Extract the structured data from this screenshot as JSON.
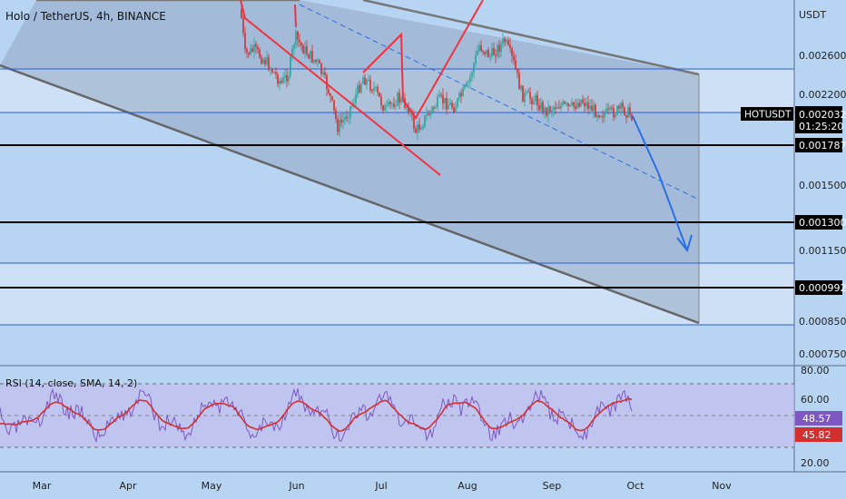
{
  "header": {
    "title": "Holo / TetherUS, 4h, BINANCE"
  },
  "axis": {
    "currency": "USDT",
    "price_ticks": [
      "0.002600",
      "0.002200",
      "0.001500",
      "0.001150",
      "0.000850",
      "0.000750"
    ],
    "time_ticks": [
      "Mar",
      "Apr",
      "May",
      "Jun",
      "Jul",
      "Aug",
      "Sep",
      "Oct",
      "Nov"
    ]
  },
  "levels": [
    {
      "label": "0.001787",
      "style": "black"
    },
    {
      "label": "0.001300",
      "style": "black"
    },
    {
      "label": "0.000992",
      "style": "black"
    }
  ],
  "current": {
    "symbol": "HOTUSDT",
    "price": "0.002032",
    "countdown": "01:25:20"
  },
  "rsi": {
    "title": "RSI (14, close, SMA, 14, 2)",
    "ticks": [
      "80.00",
      "60.00",
      "20.00"
    ],
    "rsi_value": "48.57",
    "ma_value": "45.82",
    "colors": {
      "rsi": "#7e57c2",
      "ma": "#d32f2f"
    }
  },
  "colors": {
    "up": "#26a69a",
    "down": "#d32f2f",
    "channel_fill": "#8a9db8",
    "pattern": "#ef3340",
    "projection": "#2a6ee6"
  },
  "chart_data": {
    "type": "candlestick",
    "title": "Holo / TetherUS, 4h, BINANCE",
    "ylabel": "USDT",
    "x_categories": [
      "Mar",
      "Apr",
      "May",
      "Jun",
      "Jul",
      "Aug",
      "Sep",
      "Oct",
      "Nov"
    ],
    "ylim": [
      0.0007,
      0.0031
    ],
    "horizontal_levels": [
      0.001787,
      0.0013,
      0.000992
    ],
    "current_price": 0.002032,
    "monthly_approx_close": [
      {
        "month": "May",
        "value": 0.0027
      },
      {
        "month": "Jun",
        "value": 0.0023
      },
      {
        "month": "Jul",
        "value": 0.0021
      },
      {
        "month": "Aug",
        "value": 0.0027
      },
      {
        "month": "Sep",
        "value": 0.0021
      },
      {
        "month": "Oct",
        "value": 0.002
      }
    ],
    "rsi_panel": {
      "title": "RSI (14, close, SMA, 14, 2)",
      "rsi": 48.57,
      "rsi_ma": 45.82,
      "ylim": [
        15,
        82
      ]
    }
  }
}
